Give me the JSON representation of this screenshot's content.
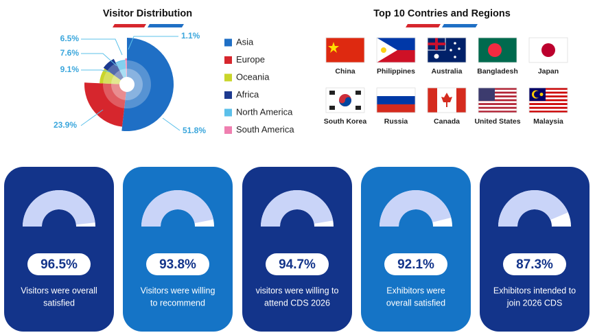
{
  "chart_data": [
    {
      "type": "pie",
      "title": "Visitor Distribution",
      "categories": [
        "Asia",
        "Europe",
        "Oceania",
        "Africa",
        "North America",
        "South America"
      ],
      "values": [
        51.8,
        23.9,
        9.1,
        7.6,
        6.5,
        1.1
      ],
      "value_labels": [
        "51.8%",
        "23.9%",
        "9.1%",
        "7.6%",
        "6.5%",
        "1.1%"
      ],
      "colors": [
        "#1f6fc5",
        "#d6262d",
        "#c9d52a",
        "#1d3a8f",
        "#5bc0ea",
        "#ef7fb0"
      ]
    },
    {
      "type": "gauge",
      "categories": [
        [
          "Visitors were overall",
          "satisfied"
        ],
        [
          "Visitors were willing",
          "to recommend"
        ],
        [
          "visitors were willing to",
          "attend CDS 2026"
        ],
        [
          "Exhibitors were",
          "overall satisfied"
        ],
        [
          "Exhibitors intended to",
          "join 2026 CDS"
        ]
      ],
      "values": [
        96.5,
        93.8,
        94.7,
        92.1,
        87.3
      ],
      "value_labels": [
        "96.5%",
        "93.8%",
        "94.7%",
        "92.1%",
        "87.3%"
      ],
      "ylim": [
        0,
        100
      ],
      "color": "#c9d4f8"
    }
  ],
  "countries": {
    "title": "Top 10 Contries and Regions",
    "names": [
      "China",
      "Philippines",
      "Australia",
      "Bangladesh",
      "Japan",
      "South Korea",
      "Russia",
      "Canada",
      "United States",
      "Malaysia"
    ]
  }
}
